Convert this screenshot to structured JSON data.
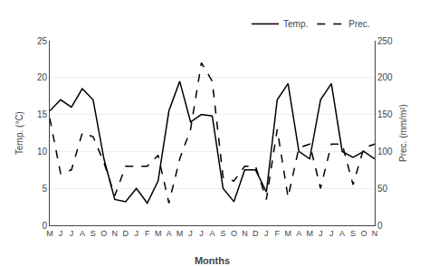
{
  "chart_data": {
    "type": "line",
    "categories": [
      "M",
      "J",
      "J",
      "A",
      "S",
      "O",
      "N",
      "D",
      "J",
      "F",
      "M",
      "A",
      "M",
      "J",
      "J",
      "A",
      "S",
      "O",
      "N",
      "D",
      "J",
      "F",
      "M",
      "A",
      "M",
      "J",
      "J",
      "A",
      "S",
      "O",
      "N"
    ],
    "series": [
      {
        "name": "Temp.",
        "color": "#000000",
        "line_style": "solid",
        "values": [
          15.5,
          17.0,
          16.0,
          18.5,
          17.0,
          9.0,
          3.5,
          3.2,
          5.0,
          3.0,
          6.0,
          15.5,
          19.5,
          14.0,
          15.0,
          14.8,
          5.0,
          3.2,
          7.5,
          7.5,
          4.5,
          17.0,
          19.2,
          10.0,
          9.0,
          17.0,
          19.2,
          10.0,
          9.2,
          10.0,
          9.0
        ]
      },
      {
        "name": "Prec.",
        "color": "#000000",
        "line_style": "dashed",
        "axis": "y2",
        "values": [
          145,
          70,
          75,
          125,
          120,
          85,
          40,
          80,
          80,
          80,
          95,
          30,
          90,
          130,
          220,
          195,
          65,
          60,
          80,
          80,
          35,
          130,
          38,
          105,
          110,
          50,
          110,
          110,
          55,
          105,
          110
        ]
      }
    ],
    "x_label": "Months",
    "y_label": "Temp. (°C)",
    "y2_label": "Prec. (mm/m²)",
    "ylim": [
      0,
      25
    ],
    "yticks": [
      0,
      5,
      10,
      15,
      20,
      25
    ],
    "y2lim": [
      0,
      250
    ],
    "y2ticks": [
      0,
      50,
      100,
      150,
      200,
      250
    ],
    "grid": true,
    "legend": "upper right"
  }
}
